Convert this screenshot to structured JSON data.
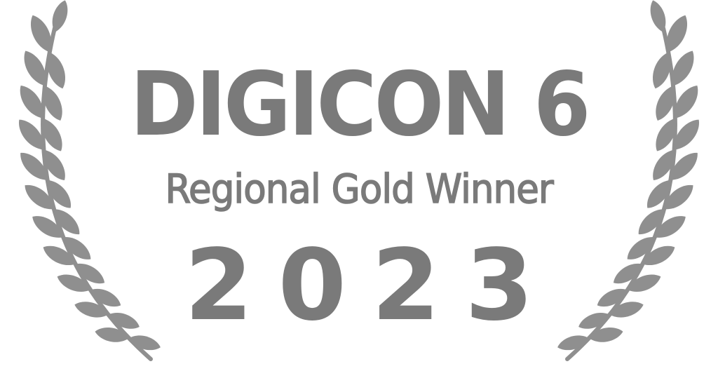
{
  "award": {
    "event_name": "DIGICON 6",
    "title": "Regional Gold Winner",
    "year": "2023"
  },
  "colors": {
    "text": "#7a7a7a",
    "laurel": "#8f8f8f",
    "background": "#ffffff"
  },
  "icons": {
    "left": "laurel-branch-left-icon",
    "right": "laurel-branch-right-icon"
  }
}
